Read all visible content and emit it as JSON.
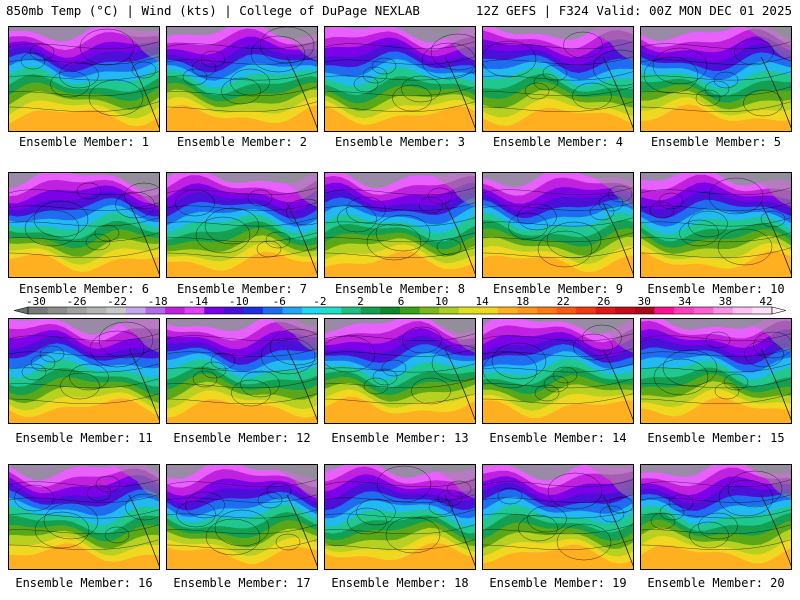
{
  "header": {
    "left": "850mb Temp (°C) | Wind (kts) | College of DuPage NEXLAB",
    "right": "12Z GEFS | F324 Valid: 00Z MON DEC 01 2025"
  },
  "caption_prefix": "Ensemble Member:",
  "members": [
    1,
    2,
    3,
    4,
    5,
    6,
    7,
    8,
    9,
    10,
    11,
    12,
    13,
    14,
    15,
    16,
    17,
    18,
    19,
    20
  ],
  "colorbar": {
    "labels": [
      "-30",
      "-26",
      "-22",
      "-18",
      "-14",
      "-10",
      "-6",
      "-2",
      "2",
      "6",
      "10",
      "14",
      "18",
      "22",
      "26",
      "30",
      "34",
      "38",
      "42"
    ],
    "colors": [
      "#7a7a7a",
      "#8d8d8d",
      "#a1a1a1",
      "#b4b4b4",
      "#c8c8c8",
      "#c4a7ee",
      "#b46ae6",
      "#c020e0",
      "#e040ff",
      "#7c00e8",
      "#4a10d8",
      "#1f2ee0",
      "#1f6cf0",
      "#22a6f8",
      "#20d8f0",
      "#20e0c8",
      "#20c080",
      "#10a050",
      "#0a8a28",
      "#3aa018",
      "#78b818",
      "#aad020",
      "#e0e020",
      "#f0d820",
      "#ffb020",
      "#ff9818",
      "#ff7a10",
      "#ff5a10",
      "#f03a10",
      "#e01818",
      "#c80a18",
      "#a80818",
      "#ff1090",
      "#ff40c0",
      "#ff60d8",
      "#ff90e8",
      "#ffc0f4",
      "#ffe0fa"
    ]
  }
}
